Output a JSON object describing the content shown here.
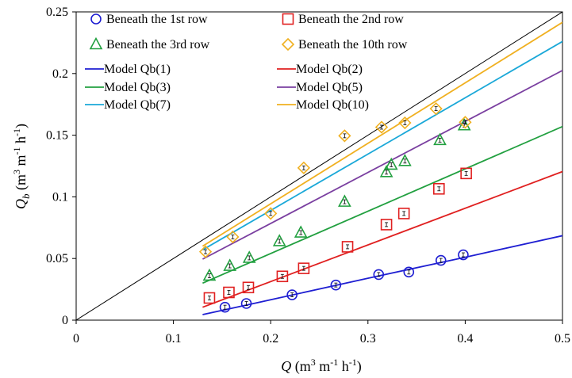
{
  "chart_data": {
    "type": "scatter",
    "xlabel": "Q (m³ m⁻¹ h⁻¹)",
    "ylabel": "Qb (m³ m⁻¹ h⁻¹)",
    "xlim": [
      0,
      0.5
    ],
    "ylim": [
      0,
      0.25
    ],
    "x_ticks": [
      0,
      0.1,
      0.2,
      0.3,
      0.4,
      0.5
    ],
    "y_ticks": [
      0,
      0.05,
      0.1,
      0.15,
      0.2,
      0.25
    ],
    "x_tick_labels": [
      "0",
      "0.1",
      "0.2",
      "0.3",
      "0.4",
      "0.5"
    ],
    "y_tick_labels": [
      "0",
      "0.05",
      "0.1",
      "0.15",
      "0.2",
      "0.25"
    ],
    "grid": false,
    "legend_position": "top-left",
    "reference_line": {
      "x": [
        0,
        0.5
      ],
      "y": [
        0,
        0.25
      ],
      "color": "#000000"
    },
    "marker_series": [
      {
        "name": "Beneath the 1st row",
        "marker": "circle",
        "color": "#1f1fd2",
        "x": [
          0.153,
          0.175,
          0.222,
          0.267,
          0.311,
          0.342,
          0.375,
          0.398
        ],
        "y": [
          0.0105,
          0.0135,
          0.0205,
          0.0285,
          0.037,
          0.039,
          0.0485,
          0.053
        ]
      },
      {
        "name": "Beneath the 2nd row",
        "marker": "square",
        "color": "#e02020",
        "x": [
          0.137,
          0.157,
          0.177,
          0.212,
          0.234,
          0.279,
          0.319,
          0.337,
          0.373,
          0.401
        ],
        "y": [
          0.018,
          0.0225,
          0.0265,
          0.0355,
          0.042,
          0.0595,
          0.0775,
          0.0865,
          0.1065,
          0.119
        ]
      },
      {
        "name": "Beneath the 3rd row",
        "marker": "triangle",
        "color": "#22a040",
        "x": [
          0.137,
          0.158,
          0.178,
          0.209,
          0.231,
          0.276,
          0.319,
          0.324,
          0.338,
          0.374,
          0.399
        ],
        "y": [
          0.036,
          0.044,
          0.0505,
          0.064,
          0.071,
          0.096,
          0.12,
          0.126,
          0.129,
          0.146,
          0.158
        ]
      },
      {
        "name": "Beneath the 10th row",
        "marker": "diamond",
        "color": "#f0b020",
        "x": [
          0.133,
          0.161,
          0.2,
          0.234,
          0.276,
          0.314,
          0.338,
          0.37,
          0.4
        ],
        "y": [
          0.0555,
          0.0675,
          0.0865,
          0.1235,
          0.1495,
          0.1565,
          0.16,
          0.1715,
          0.1605
        ]
      }
    ],
    "line_series": [
      {
        "name": "Model Qb(1)",
        "color": "#1f1fd2",
        "x": [
          0.13,
          0.2,
          0.3,
          0.4,
          0.5
        ],
        "y": [
          0.0045,
          0.0165,
          0.034,
          0.051,
          0.0685
        ]
      },
      {
        "name": "Model Qb(2)",
        "color": "#e02020",
        "x": [
          0.13,
          0.5
        ],
        "y": [
          0.0105,
          0.1205
        ]
      },
      {
        "name": "Model Qb(3)",
        "color": "#22a040",
        "x": [
          0.13,
          0.5
        ],
        "y": [
          0.03,
          0.157
        ]
      },
      {
        "name": "Model Qb(5)",
        "color": "#7a3fa0",
        "x": [
          0.13,
          0.5
        ],
        "y": [
          0.0495,
          0.2025
        ]
      },
      {
        "name": "Model Qb(7)",
        "color": "#1aa8d8",
        "x": [
          0.13,
          0.5
        ],
        "y": [
          0.057,
          0.226
        ]
      },
      {
        "name": "Model Qb(10)",
        "color": "#f0b020",
        "x": [
          0.13,
          0.5
        ],
        "y": [
          0.06,
          0.2415
        ]
      }
    ]
  },
  "axis_text": {
    "x_title_main": "Q",
    "x_title_unit_open": " (m",
    "x_title_sup1": "3",
    "x_title_m": " m",
    "x_title_sup2": "-1",
    "x_title_h": " h",
    "x_title_sup3": "-1",
    "x_title_close": ")",
    "y_title_main": "Q",
    "y_title_sub": "b",
    "y_title_unit_open": " (m",
    "y_title_sup1": "3",
    "y_title_m": " m",
    "y_title_sup2": "-1",
    "y_title_h": " h",
    "y_title_sup3": "-1",
    "y_title_close": ")"
  }
}
